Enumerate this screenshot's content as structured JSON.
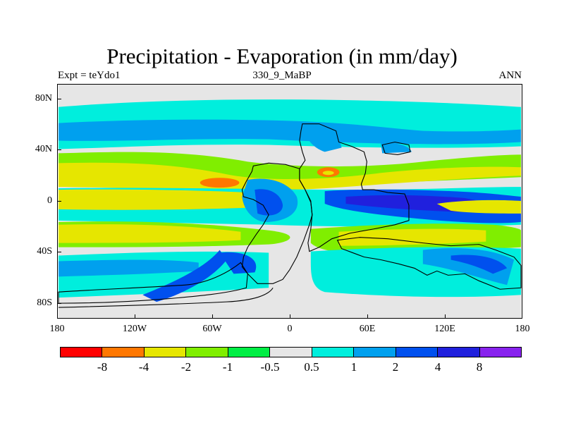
{
  "title": "Precipitation - Evaporation (in mm/day)",
  "subtitle_left": "Expt = teYdo1",
  "subtitle_center": "330_9_MaBP",
  "subtitle_right": "ANN",
  "map": {
    "background_color": "#e6e6e6",
    "land_outline_color": "#000000",
    "lat_range": [
      -90,
      90
    ],
    "lon_range": [
      -180,
      180
    ],
    "y_ticks": [
      "80N",
      "40N",
      "0",
      "40S",
      "80S"
    ],
    "x_ticks": [
      "180",
      "120W",
      "60W",
      "0",
      "60E",
      "120E",
      "180"
    ]
  },
  "colorbar": {
    "colors": [
      "#ff0000",
      "#ff7700",
      "#e6e600",
      "#80ee00",
      "#00ee44",
      "#e6e6e6",
      "#00eedd",
      "#00a0ee",
      "#0050ee",
      "#2020dd",
      "#8822ee"
    ],
    "labels": [
      "-8",
      "-4",
      "-2",
      "-1",
      "-0.5",
      "0.5",
      "1",
      "2",
      "4",
      "8"
    ]
  }
}
